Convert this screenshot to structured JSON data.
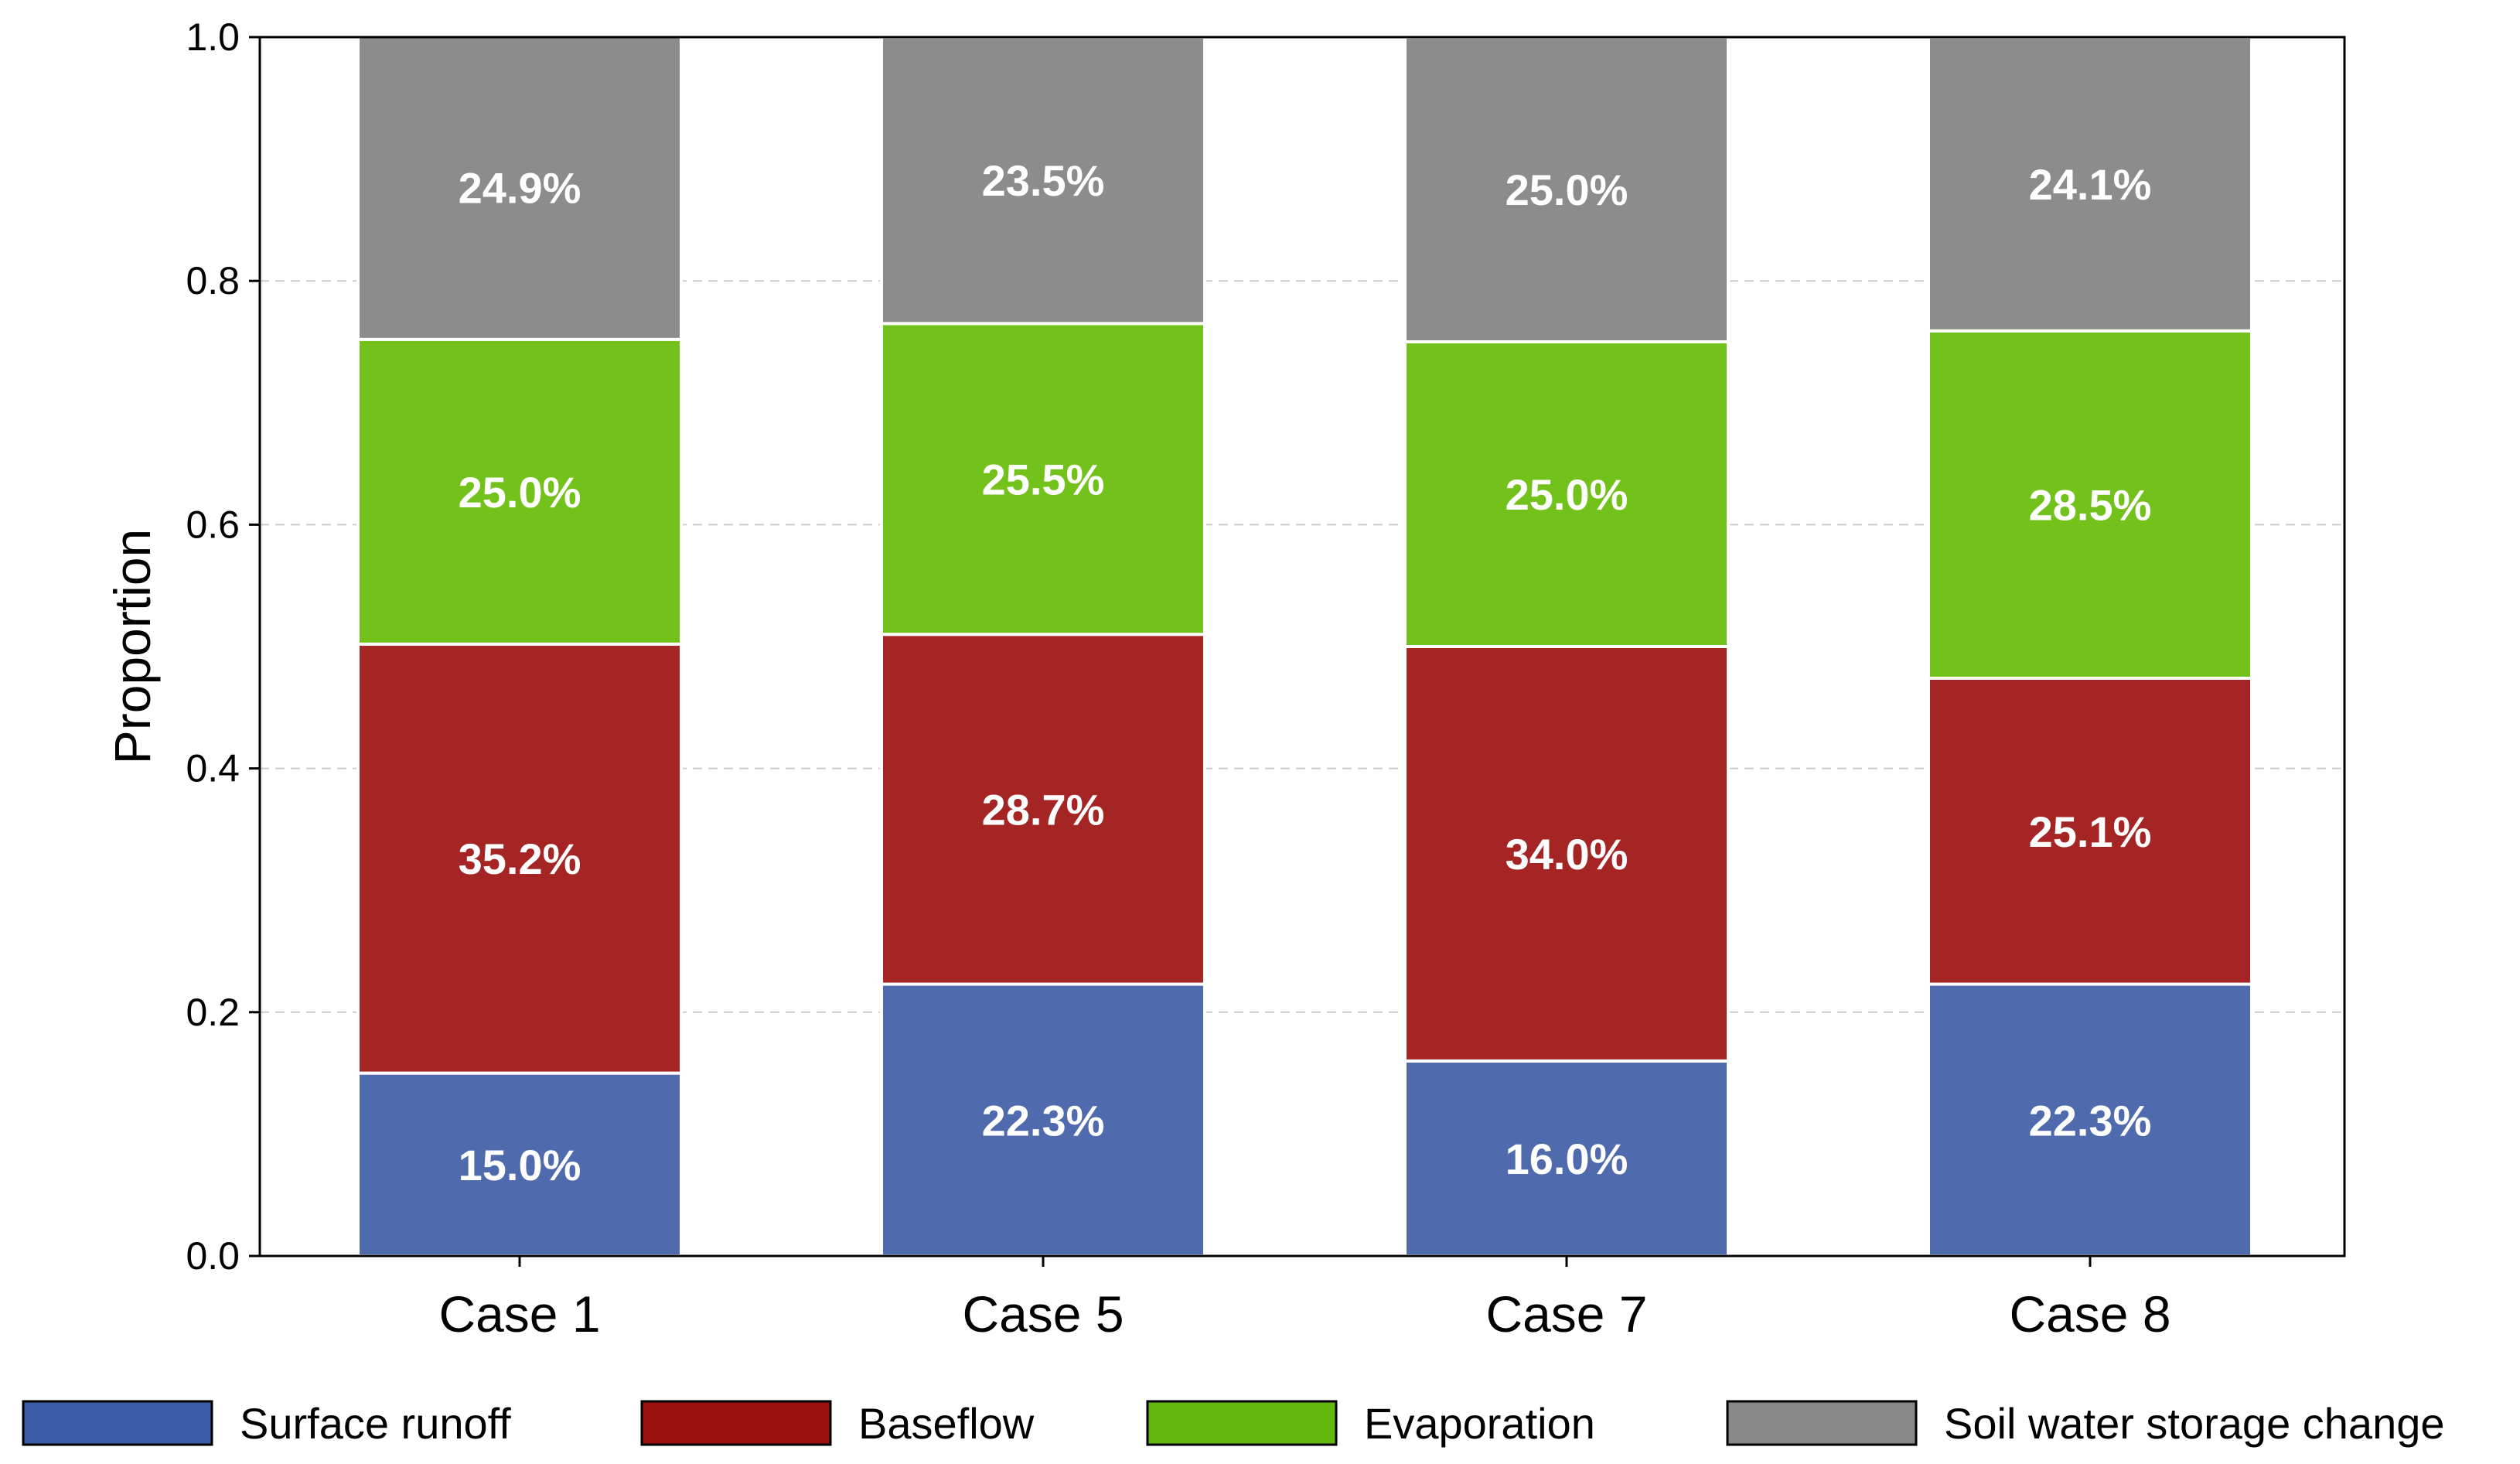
{
  "chart_data": {
    "type": "bar",
    "stacked": true,
    "categories": [
      "Case 1",
      "Case 5",
      "Case 7",
      "Case 8"
    ],
    "series": [
      {
        "name": "Surface runoff",
        "color": "#4f6aad",
        "legend_color": "#3a5ba8",
        "values": [
          0.15,
          0.223,
          0.16,
          0.223
        ],
        "labels": [
          "15.0%",
          "22.3%",
          "16.0%",
          "22.3%"
        ]
      },
      {
        "name": "Baseflow",
        "color": "#a52525",
        "legend_color": "#9c1010",
        "values": [
          0.352,
          0.287,
          0.34,
          0.251
        ],
        "labels": [
          "35.2%",
          "28.7%",
          "34.0%",
          "25.1%"
        ]
      },
      {
        "name": "Evaporation",
        "color": "#72c21b",
        "legend_color": "#62b80a",
        "values": [
          0.25,
          0.255,
          0.25,
          0.285
        ],
        "labels": [
          "25.0%",
          "25.5%",
          "25.0%",
          "28.5%"
        ]
      },
      {
        "name": "Soil water storage change",
        "color": "#8c8c8c",
        "legend_color": "#888888",
        "values": [
          0.249,
          0.235,
          0.25,
          0.241
        ],
        "labels": [
          "24.9%",
          "23.5%",
          "25.0%",
          "24.1%"
        ]
      }
    ],
    "ylabel": "Proportion",
    "ylim": [
      0,
      1.0
    ],
    "yticks": [
      "0.0",
      "0.2",
      "0.4",
      "0.6",
      "0.8",
      "1.0"
    ],
    "grid": "horizontal-dashed",
    "legend_placement": "bottom"
  }
}
